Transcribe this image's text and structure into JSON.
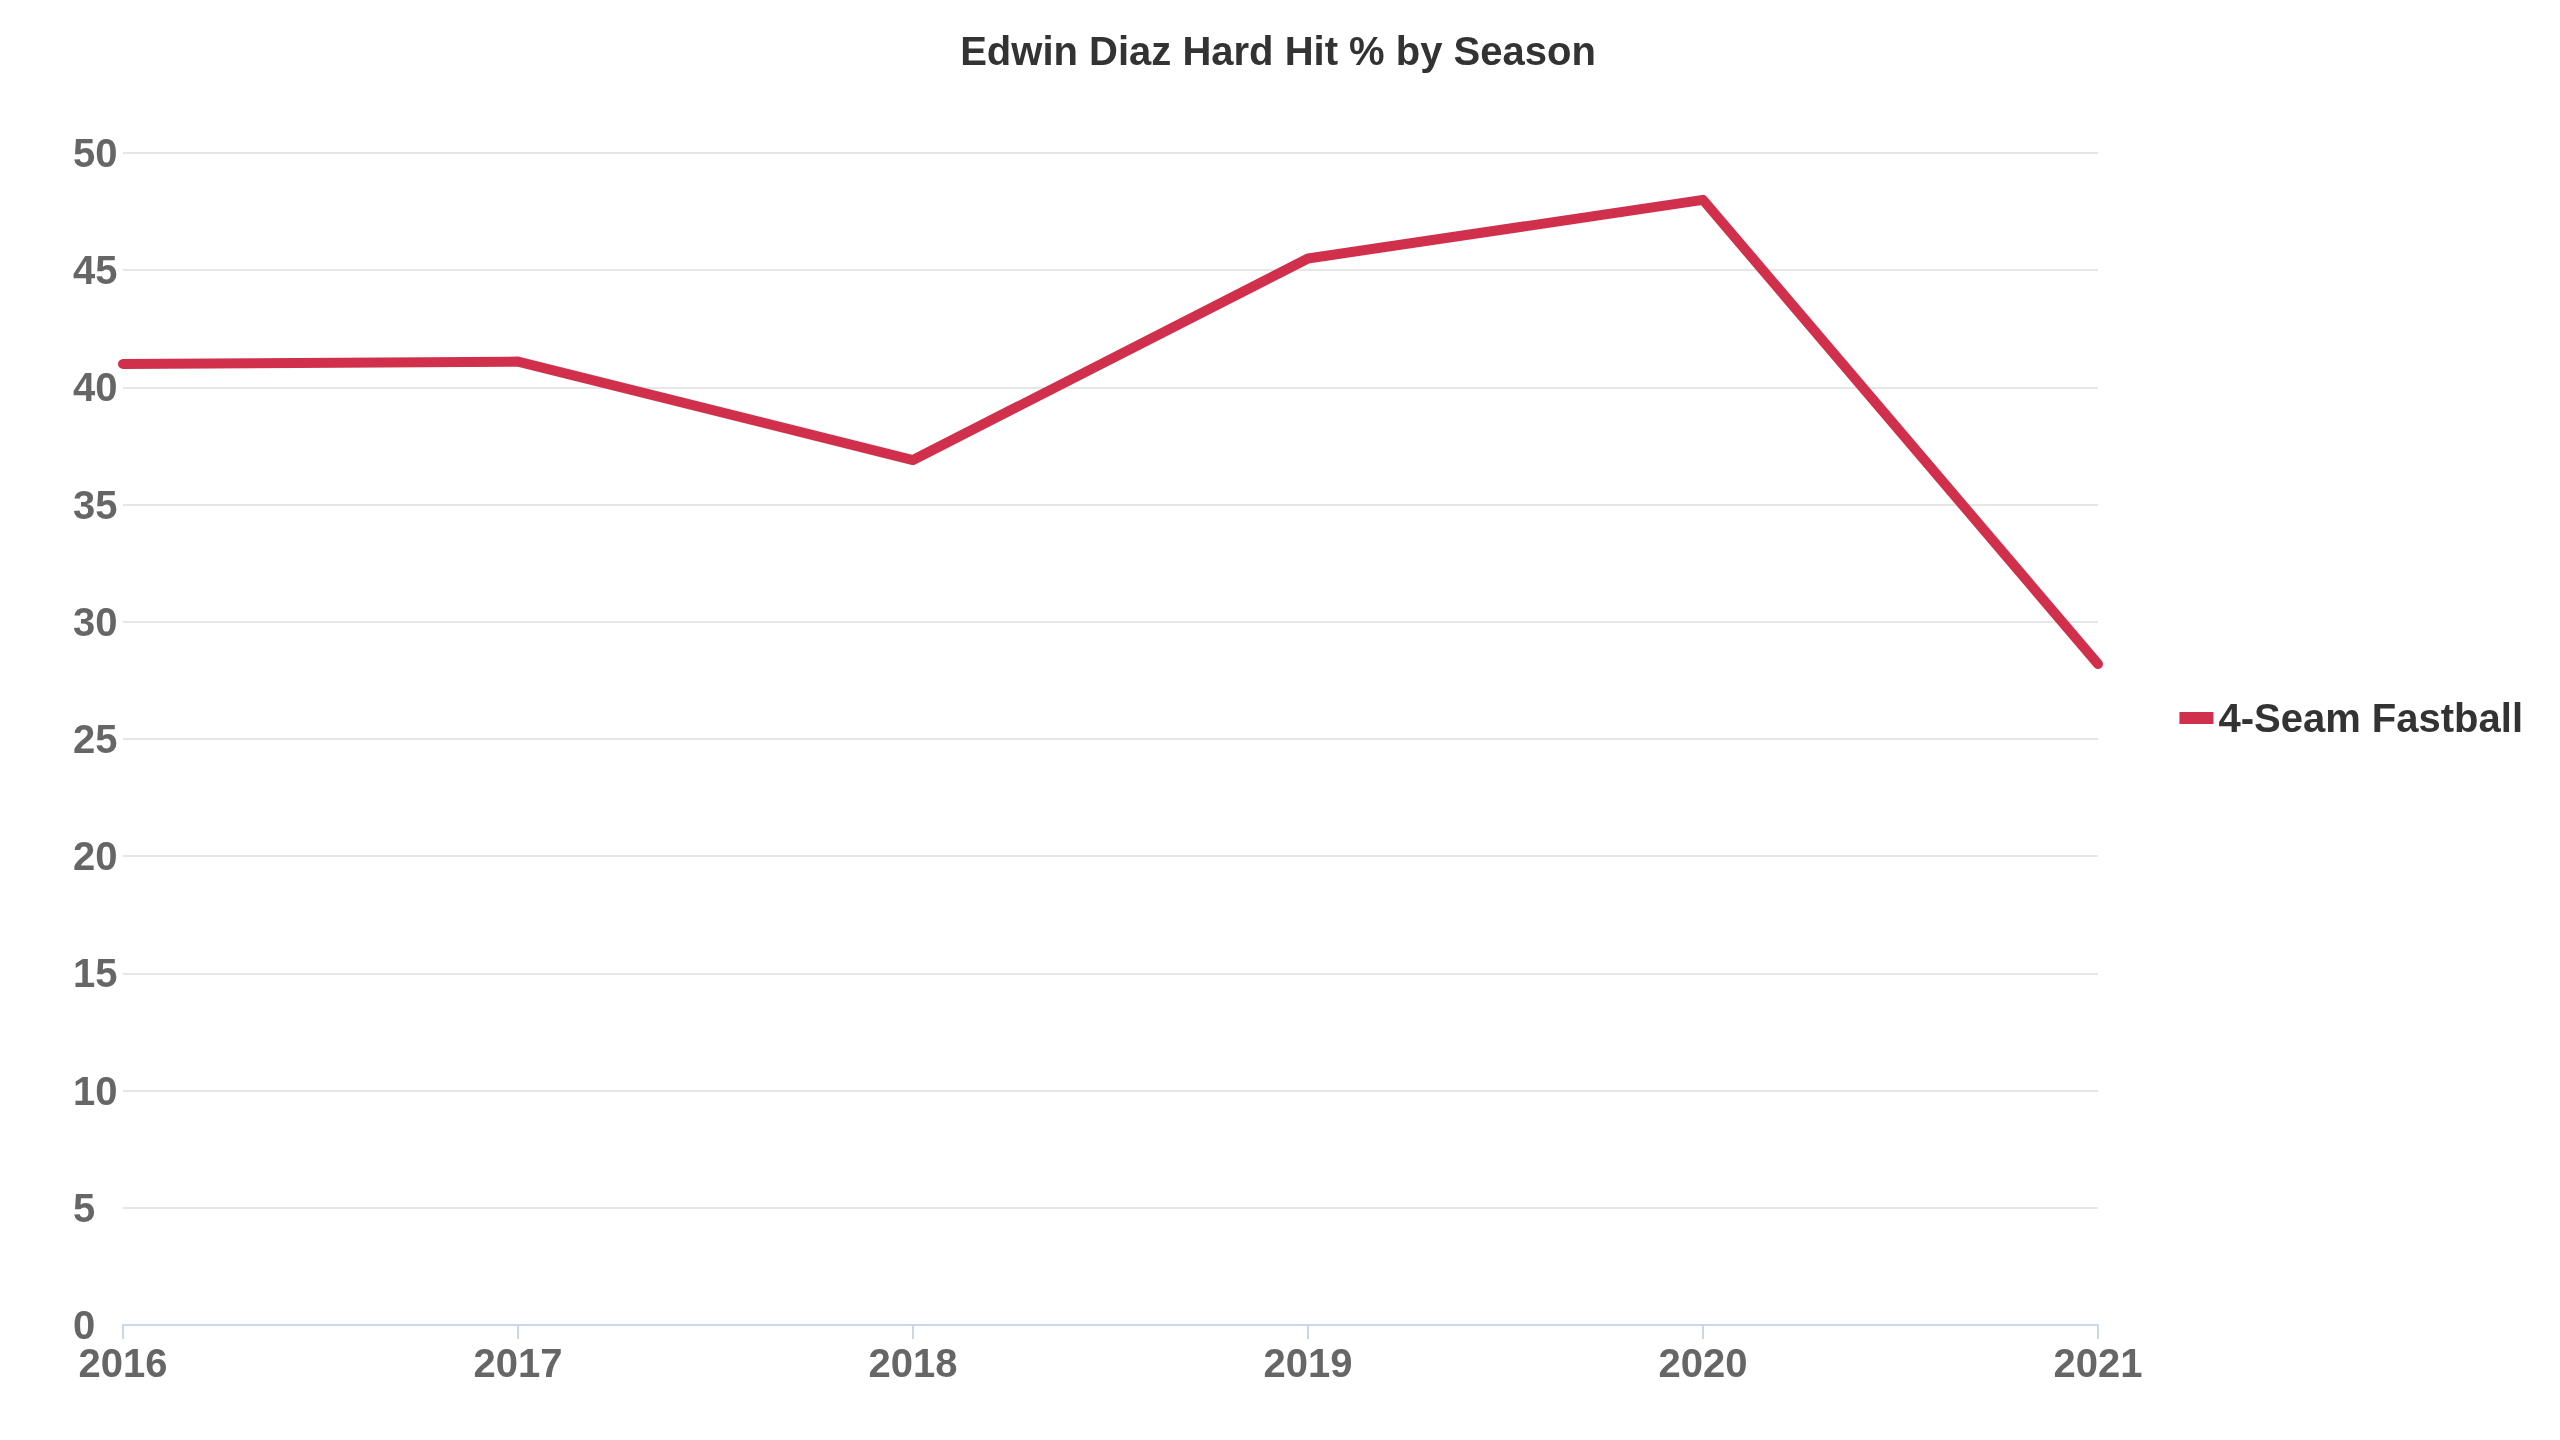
{
  "chart_data": {
    "type": "line",
    "title": "Edwin Diaz Hard Hit % by Season",
    "categories": [
      "2016",
      "2017",
      "2018",
      "2019",
      "2020",
      "2021"
    ],
    "series": [
      {
        "name": "4-Seam Fastball",
        "color": "#d0304c",
        "values": [
          41.0,
          41.1,
          36.9,
          45.5,
          48.0,
          28.2
        ]
      }
    ],
    "ylim": [
      0,
      50
    ],
    "yticks": [
      0,
      5,
      10,
      15,
      20,
      25,
      30,
      35,
      40,
      45,
      50
    ],
    "grid": "y",
    "legend": "right",
    "marker": "none",
    "line_style": "solid"
  }
}
